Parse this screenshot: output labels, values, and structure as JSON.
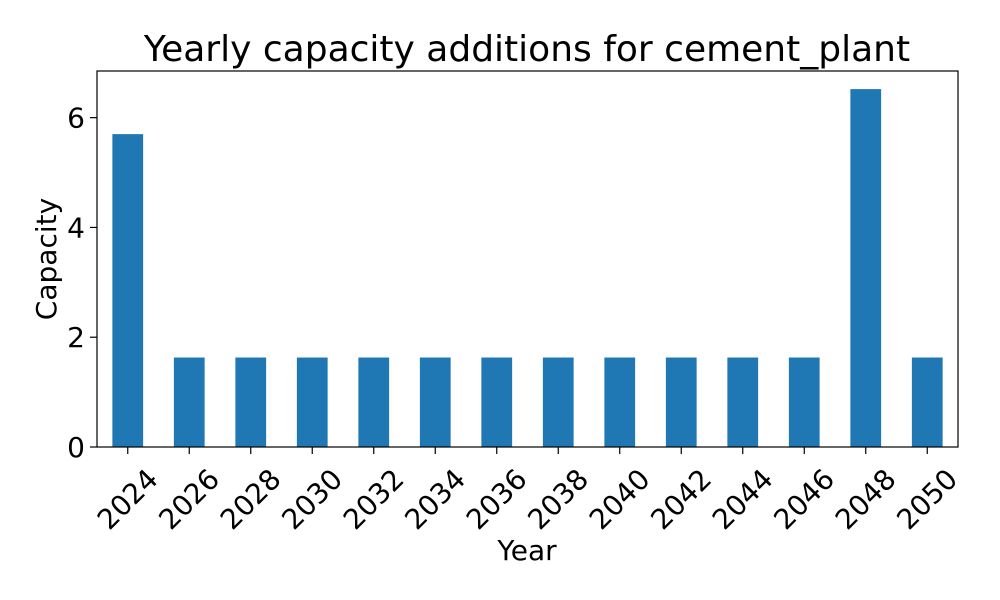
{
  "chart_data": {
    "type": "bar",
    "title": "Yearly capacity additions for cement_plant",
    "xlabel": "Year",
    "ylabel": "Capacity",
    "categories": [
      "2024",
      "2026",
      "2028",
      "2030",
      "2032",
      "2034",
      "2036",
      "2038",
      "2040",
      "2042",
      "2044",
      "2046",
      "2048",
      "2050"
    ],
    "values": [
      5.7,
      1.63,
      1.63,
      1.63,
      1.63,
      1.63,
      1.63,
      1.63,
      1.63,
      1.63,
      1.63,
      1.63,
      6.52,
      1.63
    ],
    "ylim": [
      0,
      6.85
    ],
    "yticks": [
      0,
      2,
      4,
      6
    ],
    "bar_color": "#1f77b4",
    "grid": false,
    "legend": "none"
  }
}
